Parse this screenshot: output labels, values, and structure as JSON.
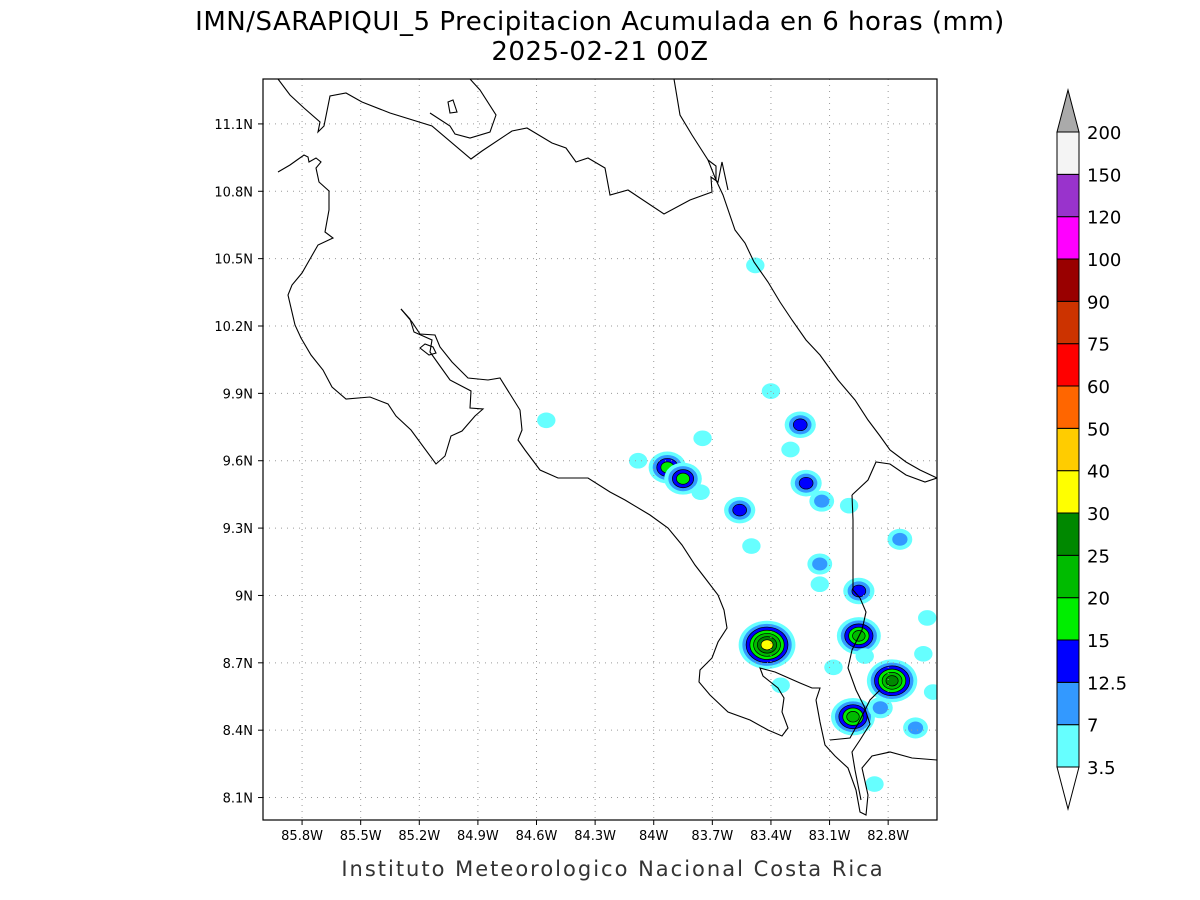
{
  "title": {
    "line1": "IMN/SARAPIQUI_5 Precipitacion Acumulada en 6 horas (mm)",
    "line2": "2025-02-21 00Z"
  },
  "footer": "Instituto Meteorologico Nacional Costa Rica",
  "map": {
    "lon_range": [
      -86.0,
      -82.55
    ],
    "lat_range": [
      8.0,
      11.3
    ],
    "lon_ticks": [
      {
        "value": -85.8,
        "label": "85.8W"
      },
      {
        "value": -85.5,
        "label": "85.5W"
      },
      {
        "value": -85.2,
        "label": "85.2W"
      },
      {
        "value": -84.9,
        "label": "84.9W"
      },
      {
        "value": -84.6,
        "label": "84.6W"
      },
      {
        "value": -84.3,
        "label": "84.3W"
      },
      {
        "value": -84.0,
        "label": "84W"
      },
      {
        "value": -83.7,
        "label": "83.7W"
      },
      {
        "value": -83.4,
        "label": "83.4W"
      },
      {
        "value": -83.1,
        "label": "83.1W"
      },
      {
        "value": -82.8,
        "label": "82.8W"
      }
    ],
    "lat_ticks": [
      {
        "value": 11.1,
        "label": "11.1N"
      },
      {
        "value": 10.8,
        "label": "10.8N"
      },
      {
        "value": 10.5,
        "label": "10.5N"
      },
      {
        "value": 10.2,
        "label": "10.2N"
      },
      {
        "value": 9.9,
        "label": "9.9N"
      },
      {
        "value": 9.6,
        "label": "9.6N"
      },
      {
        "value": 9.3,
        "label": "9.3N"
      },
      {
        "value": 9.0,
        "label": "9N"
      },
      {
        "value": 8.7,
        "label": "8.7N"
      },
      {
        "value": 8.4,
        "label": "8.4N"
      },
      {
        "value": 8.1,
        "label": "8.1N"
      }
    ],
    "grid": true
  },
  "colorbar": {
    "levels": [
      "3.5",
      "7",
      "12.5",
      "15",
      "20",
      "25",
      "30",
      "40",
      "50",
      "60",
      "75",
      "90",
      "100",
      "120",
      "150",
      "200"
    ],
    "colors": [
      "#66ffff",
      "#3399ff",
      "#0000ff",
      "#00ee00",
      "#00bb00",
      "#008800",
      "#ffff00",
      "#ffcc00",
      "#ff6600",
      "#ff0000",
      "#cc3300",
      "#990000",
      "#ff00ff",
      "#9933cc",
      "#f4f4f4"
    ],
    "over_color": "#aaaaaa",
    "under_color": "#ffffff"
  },
  "precip_cells": [
    {
      "lon": -83.42,
      "lat": 8.78,
      "peak": 30
    },
    {
      "lon": -82.78,
      "lat": 8.62,
      "peak": 25
    },
    {
      "lon": -82.95,
      "lat": 8.82,
      "peak": 20
    },
    {
      "lon": -82.98,
      "lat": 8.46,
      "peak": 20
    },
    {
      "lon": -83.93,
      "lat": 9.57,
      "peak": 15
    },
    {
      "lon": -83.85,
      "lat": 9.52,
      "peak": 15
    },
    {
      "lon": -83.56,
      "lat": 9.38,
      "peak": 12.5
    },
    {
      "lon": -83.22,
      "lat": 9.5,
      "peak": 12.5
    },
    {
      "lon": -83.25,
      "lat": 9.76,
      "peak": 12.5
    },
    {
      "lon": -82.95,
      "lat": 9.02,
      "peak": 12.5
    },
    {
      "lon": -83.14,
      "lat": 9.42,
      "peak": 7
    },
    {
      "lon": -82.84,
      "lat": 8.5,
      "peak": 7
    },
    {
      "lon": -82.74,
      "lat": 9.25,
      "peak": 7
    },
    {
      "lon": -83.15,
      "lat": 9.14,
      "peak": 7
    },
    {
      "lon": -83.75,
      "lat": 9.7,
      "peak": 3.5
    },
    {
      "lon": -83.4,
      "lat": 9.91,
      "peak": 3.5
    },
    {
      "lon": -84.55,
      "lat": 9.78,
      "peak": 3.5
    },
    {
      "lon": -83.48,
      "lat": 10.47,
      "peak": 3.5
    },
    {
      "lon": -83.3,
      "lat": 9.65,
      "peak": 3.5
    },
    {
      "lon": -83.5,
      "lat": 9.22,
      "peak": 3.5
    },
    {
      "lon": -83.76,
      "lat": 9.46,
      "peak": 3.5
    },
    {
      "lon": -82.66,
      "lat": 8.41,
      "peak": 7
    },
    {
      "lon": -82.6,
      "lat": 8.9,
      "peak": 3.5
    },
    {
      "lon": -83.08,
      "lat": 8.68,
      "peak": 3.5
    },
    {
      "lon": -83.0,
      "lat": 9.4,
      "peak": 3.5
    },
    {
      "lon": -83.15,
      "lat": 9.05,
      "peak": 3.5
    },
    {
      "lon": -83.35,
      "lat": 8.6,
      "peak": 3.5
    },
    {
      "lon": -82.57,
      "lat": 8.57,
      "peak": 3.5
    },
    {
      "lon": -82.87,
      "lat": 8.16,
      "peak": 3.5
    },
    {
      "lon": -84.08,
      "lat": 9.6,
      "peak": 3.5
    },
    {
      "lon": -82.62,
      "lat": 8.74,
      "peak": 3.5
    },
    {
      "lon": -82.92,
      "lat": 8.73,
      "peak": 3.5
    }
  ]
}
